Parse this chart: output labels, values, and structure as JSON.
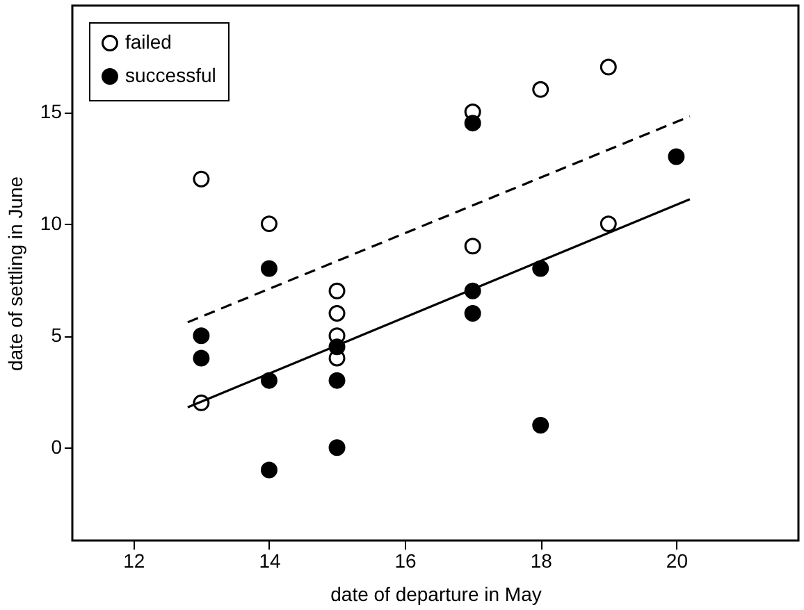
{
  "chart_data": {
    "type": "scatter",
    "xlabel": "date of departure in May",
    "ylabel": "date of settling in June",
    "xlim": [
      11.1,
      21.8
    ],
    "ylim": [
      -4.15,
      19.75
    ],
    "xticks": [
      12,
      14,
      16,
      18,
      20
    ],
    "yticks": [
      0,
      5,
      10,
      15
    ],
    "grid": false,
    "legend": "top left",
    "marker": "circle",
    "series": [
      {
        "name": "failed",
        "color": "#ffffff",
        "x": [
          13,
          13,
          14,
          15,
          15,
          15,
          15,
          17,
          17,
          18,
          19,
          19
        ],
        "values": [
          12,
          2,
          10,
          7,
          6,
          5,
          4,
          15,
          9,
          16,
          17,
          10
        ]
      },
      {
        "name": "successful",
        "color": "#000000",
        "x": [
          13,
          13,
          14,
          14,
          14,
          15,
          15,
          15,
          17,
          17,
          17,
          18,
          18,
          20
        ],
        "values": [
          5,
          4,
          8,
          3,
          -1,
          4.5,
          3,
          0,
          14.5,
          7,
          6,
          8,
          1,
          13
        ]
      },
      {
        "type": "line",
        "color": "#000000",
        "line_style": "dashed",
        "marker": "none",
        "x": [
          12.8,
          20.2
        ],
        "values": [
          5.6,
          14.8
        ]
      },
      {
        "type": "line",
        "color": "#000000",
        "line_style": "solid",
        "marker": "none",
        "x": [
          12.8,
          20.2
        ],
        "values": [
          1.8,
          11.1
        ]
      }
    ]
  }
}
